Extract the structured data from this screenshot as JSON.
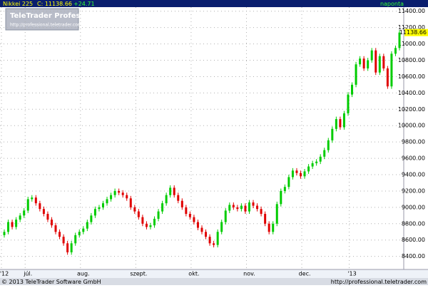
{
  "chart_data": {
    "type": "candlestick",
    "title": "Nikkei 225",
    "last_label": "C: 11138.66",
    "change": "+24.71",
    "period": "naponta",
    "logo": "TeleTrader Professional",
    "logo_url": "http://professional.teletrader.com/",
    "copyright": "© 2013 TeleTrader Software GmbH",
    "footer_url": "http://professional.teletrader.com",
    "up_color": "#00cc00",
    "down_color": "#e00000",
    "grid": true,
    "ylim": [
      8240,
      11450
    ],
    "yticks": [
      {
        "value": 8400,
        "label": "8400.00"
      },
      {
        "value": 8600,
        "label": "8600.00"
      },
      {
        "value": 8800,
        "label": "8800.00"
      },
      {
        "value": 9000,
        "label": "9000.00"
      },
      {
        "value": 9200,
        "label": "9200.00"
      },
      {
        "value": 9400,
        "label": "9400.00"
      },
      {
        "value": 9600,
        "label": "9600.00"
      },
      {
        "value": 9800,
        "label": "9800.00"
      },
      {
        "value": 10000,
        "label": "10000.00"
      },
      {
        "value": 10200,
        "label": "10200.00"
      },
      {
        "value": 10400,
        "label": "10400.00"
      },
      {
        "value": 10600,
        "label": "10600.00"
      },
      {
        "value": 10800,
        "label": "10800.00"
      },
      {
        "value": 11000,
        "label": "11000.00"
      },
      {
        "value": 11200,
        "label": "11200.00"
      },
      {
        "value": 11400,
        "label": "11400.00"
      }
    ],
    "categories": [
      "'12",
      null,
      null,
      null,
      null,
      null,
      "júl.",
      null,
      null,
      null,
      null,
      null,
      null,
      null,
      null,
      null,
      null,
      null,
      null,
      null,
      "aug.",
      null,
      null,
      null,
      null,
      null,
      null,
      null,
      null,
      null,
      null,
      null,
      null,
      null,
      "szept.",
      null,
      null,
      null,
      null,
      null,
      null,
      null,
      null,
      null,
      null,
      null,
      null,
      null,
      "okt.",
      null,
      null,
      null,
      null,
      null,
      null,
      null,
      null,
      null,
      null,
      null,
      null,
      null,
      "nov.",
      null,
      null,
      null,
      null,
      null,
      null,
      null,
      null,
      null,
      null,
      null,
      null,
      null,
      "dec.",
      null,
      null,
      null,
      null,
      null,
      null,
      null,
      null,
      null,
      null,
      null,
      "'13",
      null,
      null,
      null,
      null,
      null,
      null,
      null,
      null,
      null,
      null,
      null,
      null
    ],
    "open": [
      8660,
      8700,
      8820,
      8760,
      8850,
      8900,
      8960,
      9100,
      9120,
      9050,
      8980,
      8920,
      8850,
      8780,
      8700,
      8640,
      8560,
      8450,
      8560,
      8660,
      8700,
      8740,
      8820,
      8900,
      8980,
      9000,
      9050,
      9100,
      9150,
      9200,
      9180,
      9150,
      9110,
      9000,
      8950,
      8880,
      8800,
      8760,
      8780,
      8860,
      8950,
      9050,
      9150,
      9240,
      9150,
      9080,
      9000,
      8920,
      8880,
      8820,
      8750,
      8700,
      8640,
      8560,
      8540,
      8700,
      8820,
      8960,
      9030,
      9000,
      8980,
      9020,
      8950,
      9060,
      9020,
      8980,
      8920,
      8800,
      8700,
      8800,
      9040,
      9200,
      9250,
      9370,
      9450,
      9420,
      9380,
      9440,
      9500,
      9540,
      9560,
      9620,
      9700,
      9820,
      9960,
      10080,
      9980,
      10150,
      10380,
      10500,
      10750,
      10820,
      10700,
      10800,
      10920,
      10650,
      10850,
      10700,
      10480,
      10880,
      10950
    ],
    "high": [
      8730,
      8850,
      8850,
      8880,
      8930,
      8990,
      9130,
      9150,
      9150,
      9080,
      9010,
      8950,
      8880,
      8810,
      8730,
      8670,
      8590,
      8590,
      8690,
      8730,
      8770,
      8850,
      8930,
      9010,
      9030,
      9080,
      9130,
      9180,
      9230,
      9230,
      9210,
      9180,
      9140,
      9030,
      8980,
      8910,
      8830,
      8810,
      8890,
      8980,
      9080,
      9180,
      9270,
      9270,
      9180,
      9110,
      9030,
      8950,
      8910,
      8850,
      8780,
      8730,
      8670,
      8590,
      8730,
      8850,
      8990,
      9060,
      9060,
      9030,
      9050,
      9050,
      9090,
      9090,
      9050,
      9010,
      8950,
      8830,
      8830,
      9070,
      9230,
      9280,
      9400,
      9480,
      9480,
      9450,
      9470,
      9530,
      9570,
      9590,
      9650,
      9730,
      9850,
      9990,
      10110,
      10110,
      10180,
      10410,
      10530,
      10780,
      10850,
      10850,
      10830,
      10950,
      10950,
      10880,
      10880,
      10730,
      10910,
      10980,
      11170
    ],
    "low": [
      8630,
      8670,
      8730,
      8730,
      8820,
      8870,
      8930,
      9070,
      9020,
      8950,
      8890,
      8820,
      8750,
      8670,
      8610,
      8530,
      8420,
      8420,
      8530,
      8630,
      8670,
      8710,
      8790,
      8870,
      8950,
      8970,
      9020,
      9070,
      9120,
      9150,
      9120,
      9080,
      8970,
      8920,
      8850,
      8770,
      8730,
      8730,
      8750,
      8830,
      8920,
      9020,
      9120,
      9120,
      9050,
      8970,
      8890,
      8850,
      8790,
      8720,
      8670,
      8610,
      8530,
      8510,
      8510,
      8670,
      8790,
      8930,
      8970,
      8950,
      8950,
      8920,
      8920,
      8990,
      8950,
      8890,
      8770,
      8670,
      8670,
      8770,
      9010,
      9170,
      9220,
      9340,
      9390,
      9350,
      9350,
      9410,
      9470,
      9510,
      9530,
      9590,
      9670,
      9790,
      9930,
      9950,
      9950,
      10120,
      10350,
      10470,
      10720,
      10670,
      10670,
      10770,
      10620,
      10620,
      10670,
      10450,
      10450,
      10850,
      10920
    ],
    "close": [
      8700,
      8820,
      8760,
      8850,
      8900,
      8960,
      9100,
      9120,
      9050,
      8980,
      8920,
      8850,
      8780,
      8700,
      8640,
      8560,
      8450,
      8560,
      8660,
      8700,
      8740,
      8820,
      8900,
      8980,
      9000,
      9050,
      9100,
      9150,
      9200,
      9180,
      9150,
      9110,
      9000,
      8950,
      8880,
      8800,
      8760,
      8780,
      8860,
      8950,
      9050,
      9150,
      9240,
      9150,
      9080,
      9000,
      8920,
      8880,
      8820,
      8750,
      8700,
      8640,
      8560,
      8540,
      8700,
      8820,
      8960,
      9030,
      9000,
      8980,
      9020,
      8950,
      9060,
      9020,
      8980,
      8920,
      8800,
      8700,
      8800,
      9040,
      9200,
      9250,
      9370,
      9450,
      9420,
      9380,
      9440,
      9500,
      9540,
      9560,
      9620,
      9700,
      9820,
      9960,
      10080,
      9980,
      10150,
      10380,
      10500,
      10750,
      10820,
      10700,
      10800,
      10920,
      10650,
      10850,
      10700,
      10480,
      10880,
      10950,
      11138.66
    ]
  }
}
